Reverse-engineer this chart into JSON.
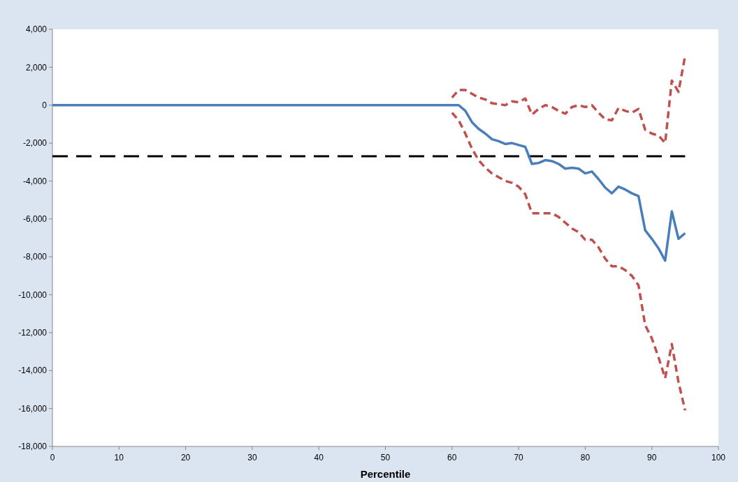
{
  "chart_data": {
    "type": "line",
    "xlabel": "Percentile",
    "xlim": [
      0,
      100
    ],
    "xticks": [
      0,
      10,
      20,
      30,
      40,
      50,
      60,
      70,
      80,
      90,
      100
    ],
    "ylim": [
      -18000,
      4000
    ],
    "yticks": [
      {
        "value": -18000,
        "label": "-18,000"
      },
      {
        "value": -16000,
        "label": "-16,000"
      },
      {
        "value": -14000,
        "label": "-14,000"
      },
      {
        "value": -12000,
        "label": "-12,000"
      },
      {
        "value": -10000,
        "label": "-10,000"
      },
      {
        "value": -8000,
        "label": "-8,000"
      },
      {
        "value": -6000,
        "label": "-6,000"
      },
      {
        "value": -4000,
        "label": "-4,000"
      },
      {
        "value": -2000,
        "label": "-2,000"
      },
      0,
      {
        "value": 2000,
        "label": "2,000"
      },
      {
        "value": 4000,
        "label": "4,000"
      }
    ],
    "grid": false,
    "marker": "none",
    "series": [
      {
        "color": "#000000",
        "line_style": "dashed",
        "x": [
          0,
          95
        ],
        "values": [
          -2700,
          -2700
        ]
      },
      {
        "color": "#c0504d",
        "line_style": "dashed",
        "x": [
          60,
          61,
          62,
          63,
          64,
          65,
          66,
          67,
          68,
          69,
          70,
          71,
          72,
          73,
          74,
          75,
          76,
          77,
          78,
          79,
          80,
          81,
          82,
          83,
          84,
          85,
          86,
          87,
          88,
          89,
          90,
          91,
          92,
          93,
          94,
          95
        ],
        "values": [
          400,
          800,
          800,
          600,
          400,
          300,
          100,
          50,
          0,
          200,
          150,
          350,
          -500,
          -200,
          0,
          -100,
          -300,
          -450,
          -100,
          0,
          -100,
          0,
          -400,
          -750,
          -800,
          -150,
          -300,
          -400,
          -200,
          -1300,
          -1500,
          -1600,
          -2000,
          1300,
          700,
          2600
        ]
      },
      {
        "color": "#c0504d",
        "line_style": "dashed",
        "x": [
          60,
          61,
          62,
          63,
          64,
          65,
          66,
          67,
          68,
          69,
          70,
          71,
          72,
          73,
          74,
          75,
          76,
          77,
          78,
          79,
          80,
          81,
          82,
          83,
          84,
          85,
          86,
          87,
          88,
          89,
          90,
          91,
          92,
          93,
          94,
          95
        ],
        "values": [
          -400,
          -800,
          -1500,
          -2300,
          -2900,
          -3300,
          -3600,
          -3800,
          -4000,
          -4100,
          -4300,
          -4700,
          -5700,
          -5700,
          -5700,
          -5700,
          -5900,
          -6200,
          -6500,
          -6700,
          -7100,
          -7100,
          -7500,
          -8100,
          -8500,
          -8500,
          -8700,
          -9000,
          -9500,
          -11600,
          -12300,
          -13300,
          -14400,
          -12600,
          -14600,
          -16100
        ]
      },
      {
        "color": "#4a7ebb",
        "line_style": "solid",
        "x": [
          0,
          61,
          62,
          63,
          64,
          65,
          66,
          67,
          68,
          69,
          70,
          71,
          72,
          73,
          74,
          75,
          76,
          77,
          78,
          79,
          80,
          81,
          82,
          83,
          84,
          85,
          86,
          87,
          88,
          89,
          90,
          91,
          92,
          93,
          94,
          95
        ],
        "values": [
          0,
          0,
          -300,
          -900,
          -1250,
          -1500,
          -1800,
          -1900,
          -2050,
          -2000,
          -2100,
          -2200,
          -3100,
          -3050,
          -2900,
          -2950,
          -3100,
          -3350,
          -3300,
          -3350,
          -3600,
          -3500,
          -3900,
          -4350,
          -4650,
          -4300,
          -4450,
          -4650,
          -4800,
          -6600,
          -7050,
          -7550,
          -8200,
          -5600,
          -7050,
          -6750
        ]
      }
    ]
  }
}
